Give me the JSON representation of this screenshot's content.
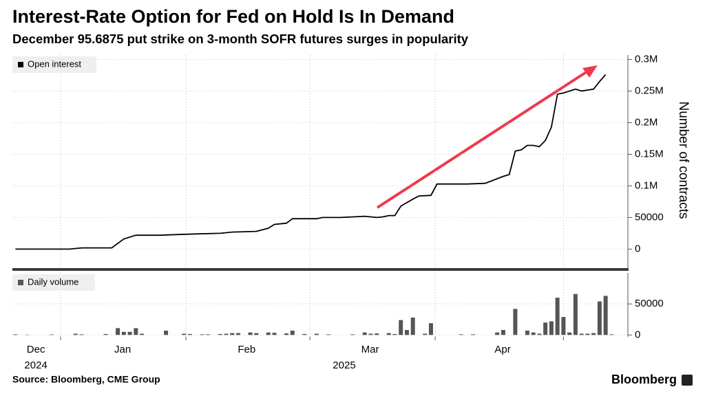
{
  "chart_data": [
    {
      "type": "line",
      "title": "Interest-Rate Option for Fed on Hold Is In Demand",
      "subtitle": "December 95.6875 put strike on 3-month SOFR futures surges in popularity",
      "y_label": "Number of contracts",
      "x": [
        0,
        9,
        11,
        16,
        18,
        20,
        24,
        27,
        30,
        34,
        36,
        40,
        42,
        43,
        45,
        46,
        50,
        51,
        54,
        58,
        60,
        61,
        62,
        63,
        64,
        66,
        67,
        69,
        70,
        75,
        78,
        81,
        82,
        83,
        84,
        85,
        86,
        87,
        88,
        89,
        90,
        91,
        93,
        94,
        96,
        97,
        98
      ],
      "series": [
        {
          "name": "Open interest",
          "color": "#000000",
          "values": [
            0,
            0,
            2000,
            2000,
            16000,
            22000,
            22000,
            23000,
            24000,
            25000,
            27000,
            28000,
            33000,
            39000,
            41000,
            48000,
            48000,
            50000,
            50000,
            52000,
            50000,
            51000,
            53000,
            53000,
            68000,
            79000,
            84000,
            85000,
            103000,
            103000,
            104000,
            115000,
            118000,
            155000,
            157000,
            164000,
            164000,
            162000,
            172000,
            193000,
            245000,
            247000,
            253000,
            250000,
            253000,
            265000,
            276000
          ]
        }
      ],
      "xlim": [
        -0.5,
        101.7
      ],
      "xticks": [
        7.5,
        28.3,
        48.9,
        69.7,
        91
      ],
      "ylim": [
        -30000,
        307000
      ],
      "yticks": [
        0,
        50000,
        {
          "value": 100000,
          "label": "0.1M"
        },
        {
          "value": 150000,
          "label": "0.15M"
        },
        {
          "value": 200000,
          "label": "0.2M"
        },
        {
          "value": 250000,
          "label": "0.25M"
        },
        {
          "value": 300000,
          "label": "0.3M"
        }
      ],
      "grid": true
    },
    {
      "type": "bar",
      "x": [
        0,
        2,
        6,
        10,
        11,
        15,
        17,
        18,
        19,
        20,
        21,
        25,
        28,
        29,
        31,
        32,
        34,
        35,
        36,
        37,
        39,
        40,
        42,
        43,
        45,
        46,
        48,
        50,
        52,
        56,
        58,
        59,
        60,
        62,
        63,
        64,
        65,
        66,
        68,
        69,
        74,
        76,
        80,
        81,
        83,
        85,
        86,
        87,
        88,
        89,
        90,
        91,
        92,
        93,
        94,
        95,
        96,
        97,
        98,
        99
      ],
      "series": [
        {
          "name": "Daily volume",
          "color": "#555555",
          "values": [
            1000,
            500,
            800,
            2000,
            1000,
            1500,
            11000,
            5000,
            5000,
            11000,
            2000,
            7000,
            2000,
            1500,
            1000,
            1000,
            1500,
            2000,
            3000,
            3000,
            4000,
            3000,
            4000,
            3500,
            2500,
            7000,
            1500,
            2000,
            1000,
            1000,
            4000,
            2000,
            2500,
            3000,
            1500,
            24000,
            8000,
            28000,
            2000,
            19000,
            1000,
            1000,
            4000,
            8000,
            42000,
            7000,
            4000,
            2000,
            20000,
            22000,
            60000,
            29000,
            4000,
            66000,
            2000,
            2000,
            3000,
            54000,
            63000,
            1000
          ]
        }
      ],
      "xlim": [
        -0.5,
        101.7
      ],
      "xticks": [
        7.5,
        28.3,
        48.9,
        69.7,
        91
      ],
      "x_labels": [
        {
          "value": 3.4,
          "label": "Dec"
        },
        {
          "value": 17.8,
          "label": "Jan"
        },
        {
          "value": 38.4,
          "label": "Feb"
        },
        {
          "value": 58.9,
          "label": "Mar"
        },
        {
          "value": 80.9,
          "label": "Apr"
        }
      ],
      "year_labels": [
        {
          "value": 3.4,
          "label": "2024"
        },
        {
          "value": 54.6,
          "label": "2025"
        }
      ],
      "ylim": [
        -3000,
        100000
      ],
      "yticks": [
        0,
        50000
      ],
      "grid": true
    }
  ],
  "footer": {
    "source": "Source: Bloomberg, CME Group",
    "brand": "Bloomberg"
  }
}
